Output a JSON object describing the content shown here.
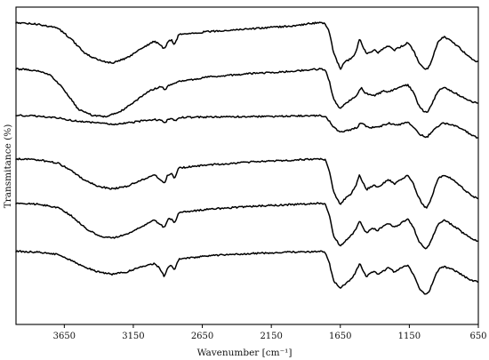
{
  "chart_data": {
    "type": "line",
    "title": "",
    "xlabel": "Wavenumber [cm⁻¹]",
    "ylabel": "Transmitance (%)",
    "xlim": [
      4000,
      650
    ],
    "x_reversed": true,
    "x_ticks": [
      3650,
      3150,
      2650,
      2150,
      1650,
      1150,
      650
    ],
    "y_ticks": [],
    "grid": false,
    "legend": "none",
    "series_offsets": [
      0.0,
      1.0,
      2.0,
      3.0,
      4.0,
      5.0
    ],
    "series": [
      {
        "values": [
          [
            4000,
            0.05
          ],
          [
            3850,
            0.08
          ],
          [
            3700,
            0.16
          ],
          [
            3600,
            0.4
          ],
          [
            3500,
            0.72
          ],
          [
            3400,
            0.86
          ],
          [
            3300,
            0.92
          ],
          [
            3200,
            0.82
          ],
          [
            3100,
            0.62
          ],
          [
            3000,
            0.45
          ],
          [
            2958,
            0.52
          ],
          [
            2925,
            0.62
          ],
          [
            2900,
            0.45
          ],
          [
            2870,
            0.42
          ],
          [
            2853,
            0.54
          ],
          [
            2820,
            0.3
          ],
          [
            2600,
            0.24
          ],
          [
            2300,
            0.18
          ],
          [
            2000,
            0.12
          ],
          [
            1850,
            0.06
          ],
          [
            1800,
            0.05
          ],
          [
            1760,
            0.06
          ],
          [
            1730,
            0.25
          ],
          [
            1700,
            0.7
          ],
          [
            1650,
            1.05
          ],
          [
            1620,
            0.9
          ],
          [
            1570,
            0.82
          ],
          [
            1540,
            0.7
          ],
          [
            1510,
            0.4
          ],
          [
            1490,
            0.55
          ],
          [
            1460,
            0.72
          ],
          [
            1430,
            0.68
          ],
          [
            1400,
            0.65
          ],
          [
            1380,
            0.7
          ],
          [
            1340,
            0.62
          ],
          [
            1300,
            0.55
          ],
          [
            1260,
            0.65
          ],
          [
            1220,
            0.58
          ],
          [
            1160,
            0.48
          ],
          [
            1120,
            0.65
          ],
          [
            1080,
            0.92
          ],
          [
            1040,
            1.05
          ],
          [
            1020,
            1.05
          ],
          [
            1000,
            0.95
          ],
          [
            970,
            0.7
          ],
          [
            940,
            0.45
          ],
          [
            900,
            0.35
          ],
          [
            860,
            0.42
          ],
          [
            800,
            0.55
          ],
          [
            750,
            0.7
          ],
          [
            700,
            0.82
          ],
          [
            650,
            0.9
          ]
        ]
      },
      {
        "values": [
          [
            4000,
            0.05
          ],
          [
            3850,
            0.08
          ],
          [
            3750,
            0.18
          ],
          [
            3650,
            0.5
          ],
          [
            3550,
            0.92
          ],
          [
            3450,
            1.05
          ],
          [
            3350,
            1.08
          ],
          [
            3250,
            0.98
          ],
          [
            3150,
            0.78
          ],
          [
            3050,
            0.55
          ],
          [
            2950,
            0.42
          ],
          [
            2920,
            0.5
          ],
          [
            2900,
            0.42
          ],
          [
            2860,
            0.38
          ],
          [
            2820,
            0.32
          ],
          [
            2600,
            0.22
          ],
          [
            2300,
            0.15
          ],
          [
            2000,
            0.1
          ],
          [
            1850,
            0.06
          ],
          [
            1800,
            0.05
          ],
          [
            1760,
            0.07
          ],
          [
            1730,
            0.3
          ],
          [
            1700,
            0.7
          ],
          [
            1650,
            0.92
          ],
          [
            1620,
            0.82
          ],
          [
            1570,
            0.7
          ],
          [
            1530,
            0.62
          ],
          [
            1500,
            0.45
          ],
          [
            1470,
            0.58
          ],
          [
            1430,
            0.6
          ],
          [
            1400,
            0.62
          ],
          [
            1370,
            0.58
          ],
          [
            1330,
            0.52
          ],
          [
            1300,
            0.55
          ],
          [
            1250,
            0.48
          ],
          [
            1200,
            0.42
          ],
          [
            1160,
            0.4
          ],
          [
            1120,
            0.55
          ],
          [
            1080,
            0.85
          ],
          [
            1040,
            0.98
          ],
          [
            1020,
            0.98
          ],
          [
            1000,
            0.88
          ],
          [
            970,
            0.7
          ],
          [
            940,
            0.52
          ],
          [
            900,
            0.45
          ],
          [
            860,
            0.5
          ],
          [
            800,
            0.6
          ],
          [
            750,
            0.68
          ],
          [
            700,
            0.75
          ],
          [
            650,
            0.8
          ]
        ]
      },
      {
        "values": [
          [
            4000,
            0.05
          ],
          [
            3850,
            0.07
          ],
          [
            3700,
            0.1
          ],
          [
            3600,
            0.16
          ],
          [
            3500,
            0.2
          ],
          [
            3400,
            0.22
          ],
          [
            3300,
            0.25
          ],
          [
            3200,
            0.22
          ],
          [
            3100,
            0.18
          ],
          [
            3000,
            0.14
          ],
          [
            2950,
            0.16
          ],
          [
            2920,
            0.22
          ],
          [
            2900,
            0.14
          ],
          [
            2870,
            0.12
          ],
          [
            2853,
            0.18
          ],
          [
            2820,
            0.1
          ],
          [
            2600,
            0.09
          ],
          [
            2300,
            0.08
          ],
          [
            2000,
            0.07
          ],
          [
            1850,
            0.06
          ],
          [
            1800,
            0.06
          ],
          [
            1760,
            0.08
          ],
          [
            1730,
            0.18
          ],
          [
            1700,
            0.3
          ],
          [
            1650,
            0.42
          ],
          [
            1620,
            0.4
          ],
          [
            1570,
            0.36
          ],
          [
            1530,
            0.32
          ],
          [
            1500,
            0.2
          ],
          [
            1470,
            0.28
          ],
          [
            1430,
            0.32
          ],
          [
            1400,
            0.3
          ],
          [
            1370,
            0.3
          ],
          [
            1330,
            0.26
          ],
          [
            1300,
            0.22
          ],
          [
            1250,
            0.26
          ],
          [
            1200,
            0.24
          ],
          [
            1160,
            0.2
          ],
          [
            1120,
            0.3
          ],
          [
            1080,
            0.45
          ],
          [
            1040,
            0.52
          ],
          [
            1020,
            0.52
          ],
          [
            1000,
            0.45
          ],
          [
            970,
            0.35
          ],
          [
            940,
            0.28
          ],
          [
            900,
            0.22
          ],
          [
            860,
            0.25
          ],
          [
            800,
            0.3
          ],
          [
            750,
            0.38
          ],
          [
            700,
            0.48
          ],
          [
            650,
            0.55
          ]
        ]
      },
      {
        "values": [
          [
            4000,
            0.05
          ],
          [
            3850,
            0.07
          ],
          [
            3700,
            0.14
          ],
          [
            3600,
            0.3
          ],
          [
            3500,
            0.52
          ],
          [
            3400,
            0.65
          ],
          [
            3300,
            0.7
          ],
          [
            3200,
            0.65
          ],
          [
            3100,
            0.52
          ],
          [
            3000,
            0.4
          ],
          [
            2958,
            0.48
          ],
          [
            2925,
            0.58
          ],
          [
            2900,
            0.4
          ],
          [
            2870,
            0.36
          ],
          [
            2853,
            0.5
          ],
          [
            2820,
            0.25
          ],
          [
            2600,
            0.18
          ],
          [
            2300,
            0.12
          ],
          [
            2000,
            0.08
          ],
          [
            1850,
            0.06
          ],
          [
            1800,
            0.05
          ],
          [
            1760,
            0.07
          ],
          [
            1730,
            0.3
          ],
          [
            1700,
            0.75
          ],
          [
            1650,
            1.05
          ],
          [
            1620,
            0.92
          ],
          [
            1570,
            0.8
          ],
          [
            1540,
            0.65
          ],
          [
            1510,
            0.4
          ],
          [
            1490,
            0.55
          ],
          [
            1460,
            0.72
          ],
          [
            1430,
            0.65
          ],
          [
            1400,
            0.62
          ],
          [
            1380,
            0.68
          ],
          [
            1340,
            0.58
          ],
          [
            1300,
            0.5
          ],
          [
            1260,
            0.6
          ],
          [
            1220,
            0.52
          ],
          [
            1160,
            0.4
          ],
          [
            1120,
            0.6
          ],
          [
            1080,
            0.9
          ],
          [
            1040,
            1.1
          ],
          [
            1020,
            1.1
          ],
          [
            1000,
            0.98
          ],
          [
            970,
            0.72
          ],
          [
            940,
            0.48
          ],
          [
            900,
            0.4
          ],
          [
            860,
            0.45
          ],
          [
            800,
            0.58
          ],
          [
            750,
            0.72
          ],
          [
            700,
            0.85
          ],
          [
            650,
            0.92
          ]
        ]
      },
      {
        "values": [
          [
            4000,
            0.05
          ],
          [
            3850,
            0.07
          ],
          [
            3700,
            0.14
          ],
          [
            3600,
            0.32
          ],
          [
            3500,
            0.58
          ],
          [
            3400,
            0.76
          ],
          [
            3300,
            0.8
          ],
          [
            3200,
            0.72
          ],
          [
            3100,
            0.58
          ],
          [
            3000,
            0.42
          ],
          [
            2958,
            0.5
          ],
          [
            2925,
            0.58
          ],
          [
            2900,
            0.4
          ],
          [
            2870,
            0.38
          ],
          [
            2853,
            0.5
          ],
          [
            2820,
            0.25
          ],
          [
            2600,
            0.18
          ],
          [
            2300,
            0.12
          ],
          [
            2000,
            0.08
          ],
          [
            1850,
            0.06
          ],
          [
            1800,
            0.05
          ],
          [
            1760,
            0.08
          ],
          [
            1730,
            0.3
          ],
          [
            1700,
            0.75
          ],
          [
            1650,
            0.98
          ],
          [
            1620,
            0.88
          ],
          [
            1570,
            0.75
          ],
          [
            1540,
            0.62
          ],
          [
            1510,
            0.42
          ],
          [
            1490,
            0.55
          ],
          [
            1460,
            0.7
          ],
          [
            1430,
            0.62
          ],
          [
            1400,
            0.6
          ],
          [
            1380,
            0.64
          ],
          [
            1340,
            0.55
          ],
          [
            1300,
            0.48
          ],
          [
            1260,
            0.58
          ],
          [
            1220,
            0.5
          ],
          [
            1160,
            0.4
          ],
          [
            1120,
            0.58
          ],
          [
            1080,
            0.88
          ],
          [
            1040,
            1.02
          ],
          [
            1020,
            1.02
          ],
          [
            1000,
            0.92
          ],
          [
            970,
            0.7
          ],
          [
            940,
            0.5
          ],
          [
            900,
            0.42
          ],
          [
            860,
            0.48
          ],
          [
            800,
            0.6
          ],
          [
            750,
            0.72
          ],
          [
            700,
            0.82
          ],
          [
            650,
            0.88
          ]
        ]
      },
      {
        "values": [
          [
            4000,
            0.05
          ],
          [
            3850,
            0.07
          ],
          [
            3700,
            0.12
          ],
          [
            3600,
            0.25
          ],
          [
            3500,
            0.4
          ],
          [
            3400,
            0.5
          ],
          [
            3300,
            0.55
          ],
          [
            3200,
            0.5
          ],
          [
            3100,
            0.4
          ],
          [
            3000,
            0.32
          ],
          [
            2958,
            0.42
          ],
          [
            2925,
            0.6
          ],
          [
            2900,
            0.4
          ],
          [
            2870,
            0.35
          ],
          [
            2853,
            0.48
          ],
          [
            2820,
            0.22
          ],
          [
            2600,
            0.15
          ],
          [
            2300,
            0.1
          ],
          [
            2000,
            0.07
          ],
          [
            1850,
            0.06
          ],
          [
            1800,
            0.05
          ],
          [
            1760,
            0.08
          ],
          [
            1730,
            0.3
          ],
          [
            1700,
            0.68
          ],
          [
            1650,
            0.85
          ],
          [
            1620,
            0.78
          ],
          [
            1570,
            0.65
          ],
          [
            1540,
            0.52
          ],
          [
            1510,
            0.3
          ],
          [
            1490,
            0.45
          ],
          [
            1460,
            0.6
          ],
          [
            1430,
            0.52
          ],
          [
            1400,
            0.5
          ],
          [
            1380,
            0.55
          ],
          [
            1340,
            0.48
          ],
          [
            1300,
            0.4
          ],
          [
            1260,
            0.5
          ],
          [
            1220,
            0.42
          ],
          [
            1160,
            0.35
          ],
          [
            1120,
            0.55
          ],
          [
            1080,
            0.85
          ],
          [
            1040,
            0.98
          ],
          [
            1020,
            0.98
          ],
          [
            1000,
            0.88
          ],
          [
            970,
            0.65
          ],
          [
            940,
            0.45
          ],
          [
            900,
            0.38
          ],
          [
            860,
            0.42
          ],
          [
            800,
            0.5
          ],
          [
            750,
            0.6
          ],
          [
            700,
            0.68
          ],
          [
            650,
            0.72
          ]
        ]
      }
    ]
  }
}
